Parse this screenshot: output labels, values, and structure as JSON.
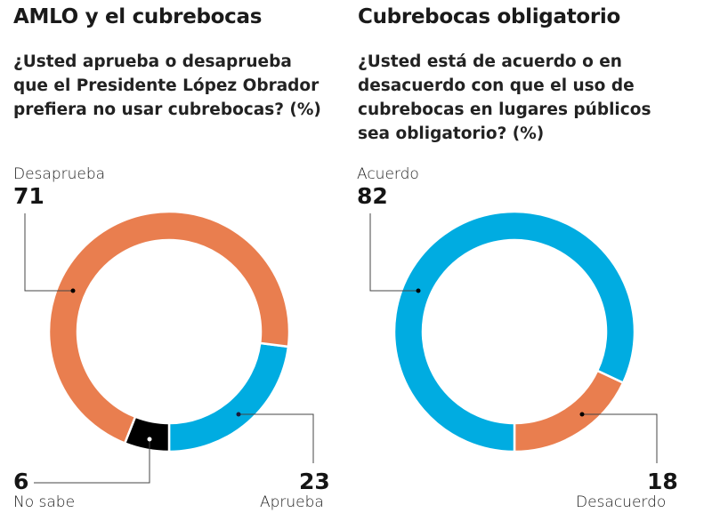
{
  "colors": {
    "orange": "#E97E4F",
    "blue": "#00ACE1",
    "black": "#000000",
    "leader": "#444444"
  },
  "chart_data": [
    {
      "type": "pie",
      "variant": "donut",
      "title": "AMLO y el cubrebocas",
      "subtitle_lines": [
        "¿Usted aprueba o desaprueba",
        "que el Presidente López Obrador",
        "prefiera no usar cubrebocas?  (%)"
      ],
      "slices": [
        {
          "label": "Aprueba",
          "value": 23,
          "color": "#00ACE1"
        },
        {
          "label": "Desaprueba",
          "value": 71,
          "color": "#E97E4F"
        },
        {
          "label": "No sabe",
          "value": 6,
          "color": "#000000"
        }
      ],
      "unit": "%"
    },
    {
      "type": "pie",
      "variant": "donut",
      "title": "Cubrebocas obligatorio",
      "subtitle_lines": [
        "¿Usted está de acuerdo o en",
        "desacuerdo con que el uso de",
        "cubrebocas en lugares públicos",
        "sea obligatorio? (%)"
      ],
      "slices": [
        {
          "label": "Desacuerdo",
          "value": 18,
          "color": "#E97E4F"
        },
        {
          "label": "Acuerdo",
          "value": 82,
          "color": "#00ACE1"
        }
      ],
      "unit": "%"
    }
  ],
  "left": {
    "title": "AMLO y el cubrebocas",
    "question": [
      "¿Usted aprueba o desaprueba",
      "que el Presidente López Obrador",
      "prefiera no usar cubrebocas?  (%)"
    ],
    "desaprueba": {
      "label": "Desaprueba",
      "value": "71"
    },
    "aprueba": {
      "label": "Aprueba",
      "value": "23"
    },
    "nosabe": {
      "label": "No sabe",
      "value": "6"
    }
  },
  "right": {
    "title": "Cubrebocas obligatorio",
    "question": [
      "¿Usted está de acuerdo o en",
      "desacuerdo con que el uso de",
      "cubrebocas en lugares públicos",
      "sea obligatorio? (%)"
    ],
    "acuerdo": {
      "label": "Acuerdo",
      "value": "82"
    },
    "desacuerdo": {
      "label": "Desacuerdo",
      "value": "18"
    }
  }
}
